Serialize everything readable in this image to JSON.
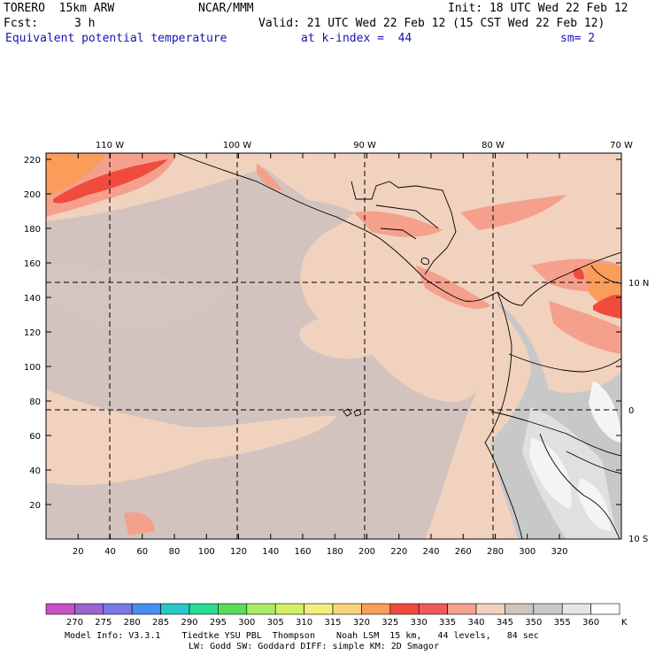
{
  "header": {
    "model": "TORERO  15km ARW",
    "org": "NCAR/MMM",
    "init": "Init: 18 UTC Wed 22 Feb 12",
    "fcst_label": "Fcst:",
    "fcst_value": "3 h",
    "valid": "Valid: 21 UTC Wed 22 Feb 12 (15 CST Wed 22 Feb 12)",
    "field": "Equivalent potential temperature",
    "level": "at k-index =  44",
    "smooth": "sm= 2"
  },
  "map": {
    "x_ticks": [
      "20",
      "40",
      "60",
      "80",
      "100",
      "120",
      "140",
      "160",
      "180",
      "200",
      "220",
      "240",
      "260",
      "280",
      "300",
      "320"
    ],
    "y_ticks": [
      "20",
      "40",
      "60",
      "80",
      "100",
      "120",
      "140",
      "160",
      "180",
      "200",
      "220"
    ],
    "lon_labels": [
      "110 W",
      "100 W",
      "90 W",
      "80 W",
      "70 W"
    ],
    "lat_labels": [
      "10 N",
      "0",
      "10 S"
    ]
  },
  "colorbar": {
    "unit": "K",
    "levels": [
      "270",
      "275",
      "280",
      "285",
      "290",
      "295",
      "300",
      "305",
      "310",
      "315",
      "320",
      "325",
      "330",
      "335",
      "340",
      "345",
      "350",
      "355",
      "360"
    ],
    "colors": [
      "#c850c8",
      "#9a64d2",
      "#7878e6",
      "#4a8cf0",
      "#28c8c8",
      "#28dc96",
      "#5adc5a",
      "#aaeb64",
      "#d2f064",
      "#f0f07a",
      "#fad278",
      "#fa9c5a",
      "#f04b3c",
      "#f05a5a",
      "#f5a08c",
      "#f0d2be",
      "#d2c3be",
      "#c8c8c8",
      "#e6e6e6",
      "#ffffff"
    ]
  },
  "footer": {
    "line1": "Model Info: V3.3.1    Tiedtke YSU PBL  Thompson    Noah LSM  15 km,   44 levels,   84 sec",
    "line2": "LW: Godd SW: Goddard DIFF: simple KM: 2D Smagor"
  },
  "colors": {
    "field_text": "#1414b4",
    "background": "#ffffff"
  }
}
